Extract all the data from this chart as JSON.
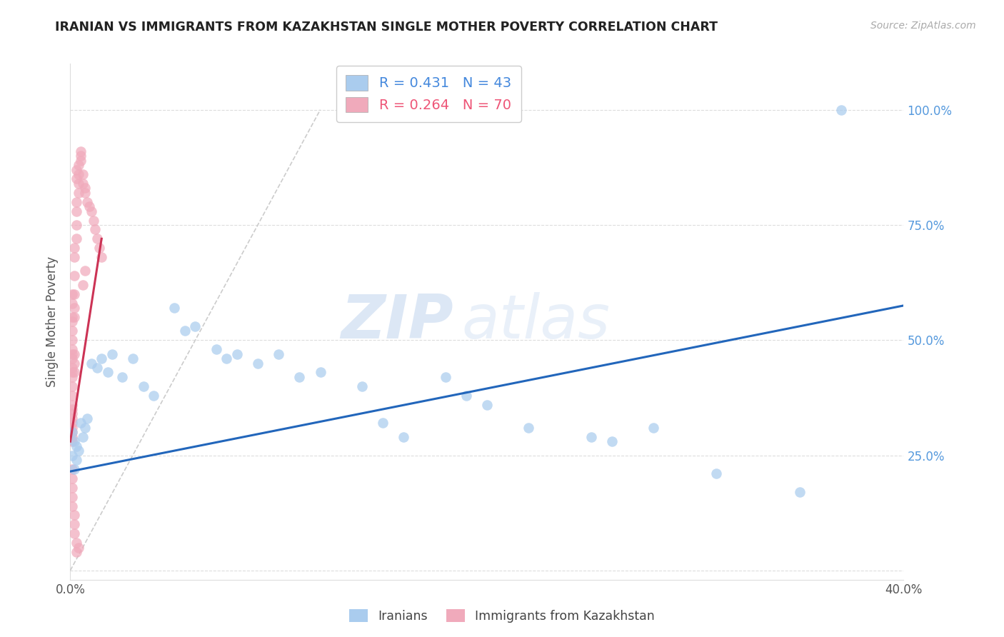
{
  "title": "IRANIAN VS IMMIGRANTS FROM KAZAKHSTAN SINGLE MOTHER POVERTY CORRELATION CHART",
  "source": "Source: ZipAtlas.com",
  "ylabel": "Single Mother Poverty",
  "blue_color": "#aaccee",
  "pink_color": "#f0aabb",
  "blue_line_color": "#2266bb",
  "pink_line_color": "#cc3355",
  "ref_line_color": "#cccccc",
  "watermark_zip": "ZIP",
  "watermark_atlas": "atlas",
  "iranians_legend": "Iranians",
  "kazakhstan_legend": "Immigrants from Kazakhstan",
  "legend_blue_text": "R = 0.431   N = 43",
  "legend_pink_text": "R = 0.264   N = 70",
  "blue_line_x": [
    0.0,
    0.4
  ],
  "blue_line_y": [
    0.215,
    0.575
  ],
  "pink_line_x": [
    0.0,
    0.015
  ],
  "pink_line_y": [
    0.28,
    0.72
  ],
  "ref_line_x": [
    0.0,
    0.12
  ],
  "ref_line_y": [
    0.0,
    1.0
  ],
  "xlim": [
    0.0,
    0.4
  ],
  "ylim": [
    -0.02,
    1.1
  ],
  "xtick_positions": [
    0.0,
    0.1,
    0.2,
    0.3,
    0.4
  ],
  "xtick_labels": [
    "0.0%",
    "",
    "",
    "",
    "40.0%"
  ],
  "ytick_positions": [
    0.0,
    0.25,
    0.5,
    0.75,
    1.0
  ],
  "ytick_labels_right": [
    "",
    "25.0%",
    "50.0%",
    "75.0%",
    "100.0%"
  ],
  "iranians_x": [
    0.001,
    0.001,
    0.002,
    0.002,
    0.003,
    0.003,
    0.004,
    0.005,
    0.006,
    0.007,
    0.008,
    0.01,
    0.013,
    0.015,
    0.018,
    0.02,
    0.025,
    0.03,
    0.035,
    0.04,
    0.05,
    0.055,
    0.06,
    0.07,
    0.075,
    0.08,
    0.09,
    0.1,
    0.11,
    0.12,
    0.14,
    0.15,
    0.16,
    0.18,
    0.19,
    0.2,
    0.22,
    0.25,
    0.26,
    0.28,
    0.31,
    0.35,
    0.37
  ],
  "iranians_y": [
    0.3,
    0.25,
    0.28,
    0.22,
    0.27,
    0.24,
    0.26,
    0.32,
    0.29,
    0.31,
    0.33,
    0.45,
    0.44,
    0.46,
    0.43,
    0.47,
    0.42,
    0.46,
    0.4,
    0.38,
    0.57,
    0.52,
    0.53,
    0.48,
    0.46,
    0.47,
    0.45,
    0.47,
    0.42,
    0.43,
    0.4,
    0.32,
    0.29,
    0.42,
    0.38,
    0.36,
    0.31,
    0.29,
    0.28,
    0.31,
    0.21,
    0.17,
    1.0
  ],
  "kazakhstan_x": [
    0.001,
    0.001,
    0.001,
    0.001,
    0.001,
    0.001,
    0.001,
    0.001,
    0.001,
    0.001,
    0.001,
    0.001,
    0.001,
    0.001,
    0.001,
    0.001,
    0.001,
    0.001,
    0.001,
    0.001,
    0.002,
    0.002,
    0.002,
    0.002,
    0.002,
    0.002,
    0.002,
    0.002,
    0.002,
    0.003,
    0.003,
    0.003,
    0.003,
    0.003,
    0.003,
    0.004,
    0.004,
    0.004,
    0.004,
    0.005,
    0.005,
    0.005,
    0.006,
    0.006,
    0.007,
    0.007,
    0.008,
    0.009,
    0.01,
    0.011,
    0.012,
    0.013,
    0.014,
    0.015,
    0.001,
    0.001,
    0.001,
    0.001,
    0.001,
    0.002,
    0.002,
    0.002,
    0.003,
    0.003,
    0.004,
    0.006,
    0.007,
    0.001,
    0.001,
    0.001
  ],
  "kazakhstan_y": [
    0.29,
    0.31,
    0.3,
    0.32,
    0.28,
    0.34,
    0.33,
    0.35,
    0.36,
    0.38,
    0.4,
    0.42,
    0.43,
    0.44,
    0.46,
    0.47,
    0.48,
    0.5,
    0.52,
    0.54,
    0.45,
    0.43,
    0.47,
    0.55,
    0.57,
    0.6,
    0.64,
    0.68,
    0.7,
    0.72,
    0.75,
    0.78,
    0.8,
    0.85,
    0.87,
    0.82,
    0.84,
    0.86,
    0.88,
    0.9,
    0.91,
    0.89,
    0.86,
    0.84,
    0.83,
    0.82,
    0.8,
    0.79,
    0.78,
    0.76,
    0.74,
    0.72,
    0.7,
    0.68,
    0.22,
    0.2,
    0.18,
    0.16,
    0.14,
    0.12,
    0.1,
    0.08,
    0.06,
    0.04,
    0.05,
    0.62,
    0.65,
    0.58,
    0.55,
    0.6
  ]
}
